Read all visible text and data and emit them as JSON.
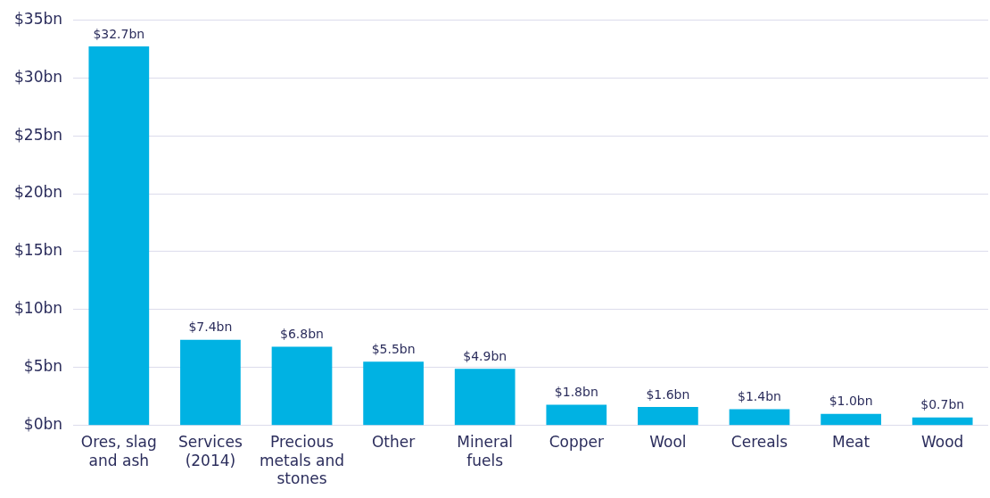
{
  "chart_data": {
    "type": "bar",
    "categories": [
      "Ores, slag and ash",
      "Services (2014)",
      "Precious metals and stones",
      "Other",
      "Mineral fuels",
      "Copper",
      "Wool",
      "Cereals",
      "Meat",
      "Wood"
    ],
    "values": [
      32.7,
      7.4,
      6.8,
      5.5,
      4.9,
      1.8,
      1.6,
      1.4,
      1.0,
      0.7
    ],
    "value_labels": [
      "$32.7bn",
      "$7.4bn",
      "$6.8bn",
      "$5.5bn",
      "$4.9bn",
      "$1.8bn",
      "$1.6bn",
      "$1.4bn",
      "$1.0bn",
      "$0.7bn"
    ],
    "color": "#00b2e3",
    "ylim": [
      0,
      35
    ],
    "yticks": [
      {
        "value": 0,
        "label": "$0bn"
      },
      {
        "value": 5,
        "label": "$5bn"
      },
      {
        "value": 10,
        "label": "$10bn"
      },
      {
        "value": 15,
        "label": "$15bn"
      },
      {
        "value": 20,
        "label": "$20bn"
      },
      {
        "value": 25,
        "label": "$25bn"
      },
      {
        "value": 30,
        "label": "$30bn"
      },
      {
        "value": 35,
        "label": "$35bn"
      }
    ],
    "grid": "y"
  }
}
